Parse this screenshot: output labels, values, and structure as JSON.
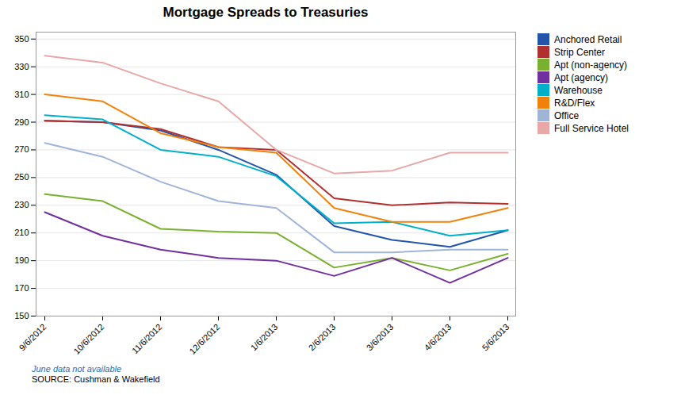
{
  "chart_data": {
    "type": "line",
    "title": "Mortgage Spreads to Treasuries",
    "categories": [
      "9/6/2012",
      "10/6/2012",
      "11/6/2012",
      "12/6/2012",
      "1/6/2013",
      "2/6/2013",
      "3/6/2013",
      "4/6/2013",
      "5/6/2013"
    ],
    "series": [
      {
        "name": "Anchored Retail",
        "color": "#2255aa",
        "values": [
          291,
          290,
          284,
          270,
          252,
          215,
          205,
          200,
          212
        ]
      },
      {
        "name": "Strip Center",
        "color": "#b03030",
        "values": [
          291,
          290,
          285,
          272,
          270,
          235,
          230,
          232,
          231
        ]
      },
      {
        "name": "Apt (non-agency)",
        "color": "#7ab030",
        "values": [
          238,
          233,
          213,
          211,
          210,
          185,
          192,
          183,
          195
        ]
      },
      {
        "name": "Apt (agency)",
        "color": "#7030a0",
        "values": [
          225,
          208,
          198,
          192,
          190,
          179,
          192,
          174,
          192
        ]
      },
      {
        "name": "Warehouse",
        "color": "#00b0c8",
        "values": [
          295,
          292,
          270,
          265,
          251,
          217,
          218,
          208,
          212
        ]
      },
      {
        "name": "R&D/Flex",
        "color": "#f0820c",
        "values": [
          310,
          305,
          282,
          272,
          268,
          228,
          218,
          218,
          228
        ]
      },
      {
        "name": "Office",
        "color": "#a0b4d8",
        "values": [
          275,
          265,
          247,
          233,
          228,
          196,
          196,
          198,
          198
        ]
      },
      {
        "name": "Full Service Hotel",
        "color": "#e8a8a8",
        "values": [
          338,
          333,
          318,
          305,
          270,
          253,
          255,
          268,
          268
        ]
      }
    ],
    "ylim": [
      150,
      355
    ],
    "yticks": [
      150,
      170,
      190,
      210,
      230,
      250,
      270,
      290,
      310,
      330,
      350
    ],
    "grid": true,
    "legend": "right",
    "annotations": [
      "June data not available",
      "SOURCE:  Cushman & Wakefield"
    ]
  }
}
